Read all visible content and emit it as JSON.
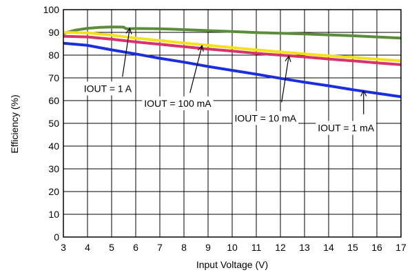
{
  "chart_data": {
    "type": "line",
    "xlabel": "Input Voltage (V)",
    "ylabel": "Efficiency (%)",
    "xlim": [
      3,
      17
    ],
    "ylim": [
      0,
      100
    ],
    "x_ticks": [
      3,
      4,
      5,
      6,
      7,
      8,
      9,
      10,
      11,
      12,
      13,
      14,
      15,
      16,
      17
    ],
    "y_ticks": [
      0,
      10,
      20,
      30,
      40,
      50,
      60,
      70,
      80,
      90,
      100
    ],
    "grid": true,
    "series": [
      {
        "name": "IOUT = 1 A",
        "color": "#5b8c3a",
        "points": [
          [
            3,
            89.5
          ],
          [
            3.5,
            91
          ],
          [
            4,
            91.8
          ],
          [
            4.5,
            92.2
          ],
          [
            5,
            92.4
          ],
          [
            5.5,
            92.3
          ],
          [
            5.6,
            91.6
          ],
          [
            6,
            91.7
          ],
          [
            7,
            91.6
          ],
          [
            8,
            91.2
          ],
          [
            9,
            90.8
          ],
          [
            10,
            90.4
          ],
          [
            11,
            89.9
          ],
          [
            12,
            89.6
          ],
          [
            13,
            89.3
          ],
          [
            14,
            88.9
          ],
          [
            15,
            88.5
          ],
          [
            16,
            88.0
          ],
          [
            17,
            87.5
          ]
        ]
      },
      {
        "name": "IOUT = 100 mA",
        "color": "#f5e11a",
        "points": [
          [
            3,
            90
          ],
          [
            4,
            89.8
          ],
          [
            5,
            88.8
          ],
          [
            6,
            87.5
          ],
          [
            7,
            86.4
          ],
          [
            8,
            85.3
          ],
          [
            9,
            84.3
          ],
          [
            10,
            83.3
          ],
          [
            11,
            82.3
          ],
          [
            12,
            81.4
          ],
          [
            13,
            80.5
          ],
          [
            14,
            79.7
          ],
          [
            15,
            79.0
          ],
          [
            16,
            78.2
          ],
          [
            17,
            77.5
          ]
        ]
      },
      {
        "name": "IOUT = 10 mA",
        "color": "#d6336c",
        "points": [
          [
            3,
            88.3
          ],
          [
            4,
            88
          ],
          [
            5,
            87.0
          ],
          [
            6,
            85.8
          ],
          [
            7,
            84.8
          ],
          [
            8,
            83.7
          ],
          [
            9,
            82.7
          ],
          [
            10,
            81.8
          ],
          [
            11,
            80.8
          ],
          [
            12,
            80.0
          ],
          [
            13,
            79.2
          ],
          [
            14,
            78.3
          ],
          [
            15,
            77.5
          ],
          [
            16,
            76.6
          ],
          [
            17,
            75.8
          ]
        ]
      },
      {
        "name": "IOUT = 1 mA",
        "color": "#1a2ee0",
        "points": [
          [
            3,
            85.2
          ],
          [
            4,
            84.3
          ],
          [
            5,
            82.3
          ],
          [
            6,
            80.5
          ],
          [
            7,
            78.6
          ],
          [
            8,
            76.9
          ],
          [
            9,
            75.0
          ],
          [
            10,
            73.3
          ],
          [
            11,
            71.6
          ],
          [
            12,
            69.8
          ],
          [
            13,
            68.1
          ],
          [
            14,
            66.5
          ],
          [
            15,
            64.8
          ],
          [
            16,
            63.2
          ],
          [
            17,
            61.7
          ]
        ]
      }
    ],
    "annotations": [
      {
        "text": "IOUT = 1 A",
        "series_index": 0,
        "label_x": 3.85,
        "label_y": 63.8,
        "arrow_from": [
          5.45,
          70.5
        ],
        "arrow_to": [
          5.75,
          91.8
        ]
      },
      {
        "text": "IOUT = 100 mA",
        "series_index": 1,
        "label_x": 6.35,
        "label_y": 57.3,
        "arrow_from": [
          8.25,
          63.4
        ],
        "arrow_to": [
          8.75,
          84.2
        ]
      },
      {
        "text": "IOUT = 10 mA",
        "series_index": 2,
        "label_x": 10.1,
        "label_y": 50.8,
        "arrow_from": [
          12.05,
          59.3
        ],
        "arrow_to": [
          12.35,
          79.6
        ]
      },
      {
        "text": "IOUT = 1 mA",
        "series_index": 3,
        "label_x": 13.55,
        "label_y": 46.5,
        "arrow_from": [
          15.45,
          54.0
        ],
        "arrow_to": [
          15.45,
          64.4
        ]
      }
    ]
  }
}
